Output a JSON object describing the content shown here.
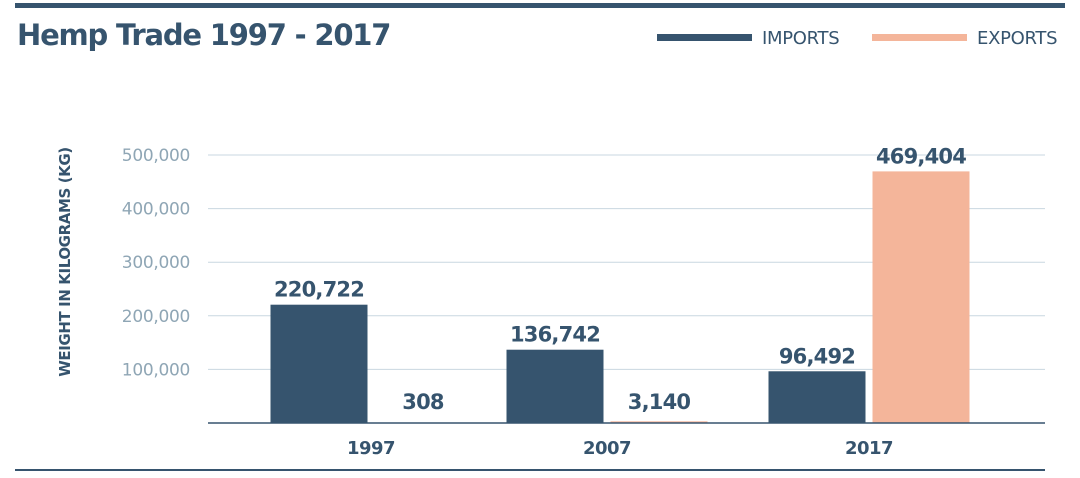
{
  "chart_data": {
    "type": "bar",
    "title": "Hemp Trade 1997 - 2017",
    "categories": [
      "1997",
      "2007",
      "2017"
    ],
    "series": [
      {
        "name": "IMPORTS",
        "values": [
          220722,
          136742,
          96492
        ],
        "labels": [
          "220,722",
          "136,742",
          "96,492"
        ],
        "color": "#36546e"
      },
      {
        "name": "EXPORTS",
        "values": [
          308,
          3140,
          469404
        ],
        "labels": [
          "308",
          "3,140",
          "469,404"
        ],
        "color": "#f4b59a"
      }
    ],
    "ylabel": "WEIGHT IN KILOGRAMS (KG)",
    "xlabel": "",
    "ylim": [
      0,
      500000
    ],
    "yticks": [
      100000,
      200000,
      300000,
      400000,
      500000
    ],
    "ytick_labels": [
      "100,000",
      "200,000",
      "300,000",
      "400,000",
      "500,000"
    ],
    "grid": true,
    "legend_position": "top-right"
  },
  "colors": {
    "imports": "#36546e",
    "exports": "#f4b59a",
    "axis_text": "#8fa6b5",
    "grid": "#c9d7e0"
  }
}
